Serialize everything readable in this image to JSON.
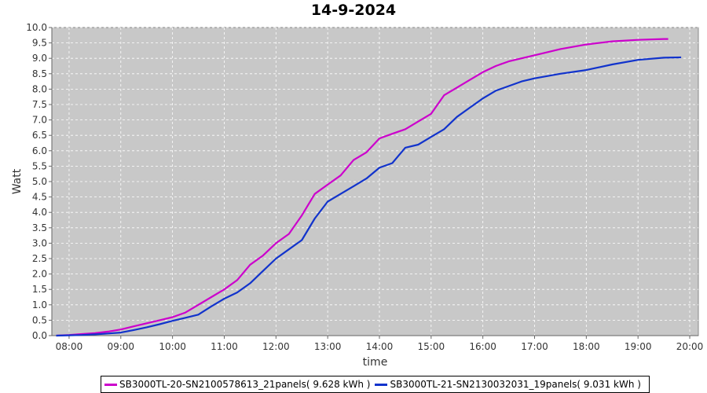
{
  "chart_data": {
    "type": "line",
    "title": "14-9-2024",
    "xlabel": "time",
    "ylabel": "Watt",
    "x_ticks": [
      "08:00",
      "09:00",
      "10:00",
      "11:00",
      "12:00",
      "13:00",
      "14:00",
      "15:00",
      "16:00",
      "17:00",
      "18:00",
      "19:00",
      "20:00"
    ],
    "y_ticks": [
      "0.0",
      "0.5",
      "1.0",
      "1.5",
      "2.0",
      "2.5",
      "3.0",
      "3.5",
      "4.0",
      "4.5",
      "5.0",
      "5.5",
      "6.0",
      "6.5",
      "7.0",
      "7.5",
      "8.0",
      "8.5",
      "9.0",
      "9.5",
      "10.0"
    ],
    "xlim": [
      "07:40",
      "20:10"
    ],
    "ylim": [
      0,
      10
    ],
    "grid": true,
    "legend_position": "bottom",
    "plot_background": "#c8c8c8",
    "series": [
      {
        "name": "SB3000TL-20-SN2100578613_21panels( 9.628 kWh )",
        "color": "#cc00cc",
        "points": [
          [
            "07:45",
            0.0
          ],
          [
            "08:00",
            0.02
          ],
          [
            "08:15",
            0.05
          ],
          [
            "08:30",
            0.08
          ],
          [
            "08:45",
            0.13
          ],
          [
            "09:00",
            0.2
          ],
          [
            "09:15",
            0.3
          ],
          [
            "09:30",
            0.4
          ],
          [
            "09:45",
            0.5
          ],
          [
            "10:00",
            0.6
          ],
          [
            "10:15",
            0.75
          ],
          [
            "10:30",
            1.0
          ],
          [
            "10:45",
            1.25
          ],
          [
            "11:00",
            1.5
          ],
          [
            "11:15",
            1.8
          ],
          [
            "11:30",
            2.3
          ],
          [
            "11:45",
            2.6
          ],
          [
            "12:00",
            3.0
          ],
          [
            "12:15",
            3.3
          ],
          [
            "12:30",
            3.9
          ],
          [
            "12:45",
            4.6
          ],
          [
            "13:00",
            4.9
          ],
          [
            "13:15",
            5.2
          ],
          [
            "13:30",
            5.7
          ],
          [
            "13:45",
            5.95
          ],
          [
            "14:00",
            6.4
          ],
          [
            "14:15",
            6.55
          ],
          [
            "14:30",
            6.7
          ],
          [
            "14:45",
            6.95
          ],
          [
            "15:00",
            7.2
          ],
          [
            "15:15",
            7.8
          ],
          [
            "15:30",
            8.05
          ],
          [
            "15:45",
            8.3
          ],
          [
            "16:00",
            8.55
          ],
          [
            "16:15",
            8.75
          ],
          [
            "16:30",
            8.9
          ],
          [
            "16:45",
            9.0
          ],
          [
            "17:00",
            9.1
          ],
          [
            "17:30",
            9.3
          ],
          [
            "18:00",
            9.45
          ],
          [
            "18:30",
            9.55
          ],
          [
            "19:00",
            9.6
          ],
          [
            "19:30",
            9.628
          ],
          [
            "19:35",
            9.628
          ]
        ]
      },
      {
        "name": "SB3000TL-21-SN2130032031_19panels( 9.031 kWh )",
        "color": "#1133cc",
        "points": [
          [
            "07:45",
            0.0
          ],
          [
            "08:00",
            0.01
          ],
          [
            "08:15",
            0.02
          ],
          [
            "08:30",
            0.04
          ],
          [
            "08:45",
            0.07
          ],
          [
            "09:00",
            0.1
          ],
          [
            "09:15",
            0.18
          ],
          [
            "09:30",
            0.27
          ],
          [
            "09:45",
            0.37
          ],
          [
            "10:00",
            0.48
          ],
          [
            "10:15",
            0.58
          ],
          [
            "10:30",
            0.68
          ],
          [
            "10:45",
            0.95
          ],
          [
            "11:00",
            1.2
          ],
          [
            "11:15",
            1.4
          ],
          [
            "11:30",
            1.7
          ],
          [
            "11:45",
            2.1
          ],
          [
            "12:00",
            2.5
          ],
          [
            "12:15",
            2.8
          ],
          [
            "12:30",
            3.1
          ],
          [
            "12:45",
            3.8
          ],
          [
            "13:00",
            4.35
          ],
          [
            "13:15",
            4.6
          ],
          [
            "13:30",
            4.85
          ],
          [
            "13:45",
            5.1
          ],
          [
            "14:00",
            5.45
          ],
          [
            "14:15",
            5.6
          ],
          [
            "14:30",
            6.1
          ],
          [
            "14:45",
            6.2
          ],
          [
            "15:00",
            6.45
          ],
          [
            "15:15",
            6.7
          ],
          [
            "15:30",
            7.1
          ],
          [
            "15:45",
            7.4
          ],
          [
            "16:00",
            7.7
          ],
          [
            "16:15",
            7.95
          ],
          [
            "16:30",
            8.1
          ],
          [
            "16:45",
            8.25
          ],
          [
            "17:00",
            8.35
          ],
          [
            "17:30",
            8.5
          ],
          [
            "18:00",
            8.62
          ],
          [
            "18:30",
            8.8
          ],
          [
            "19:00",
            8.95
          ],
          [
            "19:30",
            9.02
          ],
          [
            "19:50",
            9.031
          ]
        ]
      }
    ]
  }
}
